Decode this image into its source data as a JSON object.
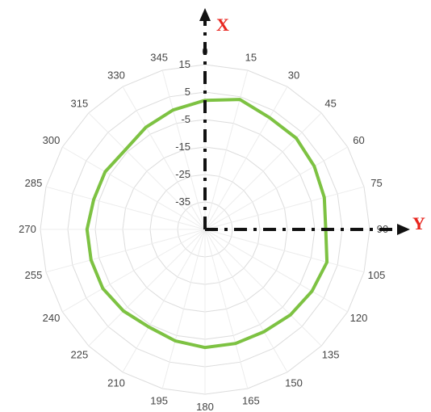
{
  "chart_data": {
    "type": "radar",
    "angle_ticks": [
      "0",
      "15",
      "30",
      "45",
      "60",
      "75",
      "90",
      "105",
      "120",
      "135",
      "150",
      "165",
      "180",
      "195",
      "210",
      "225",
      "240",
      "255",
      "270",
      "285",
      "300",
      "315",
      "330",
      "345"
    ],
    "radial_ticks": [
      "-35",
      "-25",
      "-15",
      "-5",
      "5",
      "15"
    ],
    "rlim": [
      -45,
      15
    ],
    "grid": true,
    "angles": [
      0,
      15,
      30,
      45,
      60,
      75,
      90,
      105,
      120,
      135,
      150,
      165,
      180,
      195,
      210,
      225,
      240,
      255,
      270,
      285,
      300,
      315,
      330,
      345
    ],
    "series": [
      {
        "color": "#7dc242",
        "values": [
          2,
          4,
          2,
          2,
          1,
          0,
          -1,
          1,
          0,
          -1,
          -2,
          -2,
          -2,
          -3,
          -4,
          -3,
          -2,
          -2,
          -2,
          -3,
          -3,
          -4,
          -2,
          0
        ]
      }
    ]
  },
  "axes": {
    "x_label": "X",
    "y_label": "Y",
    "label_color": "#e8261f",
    "axis_color": "#111111"
  }
}
